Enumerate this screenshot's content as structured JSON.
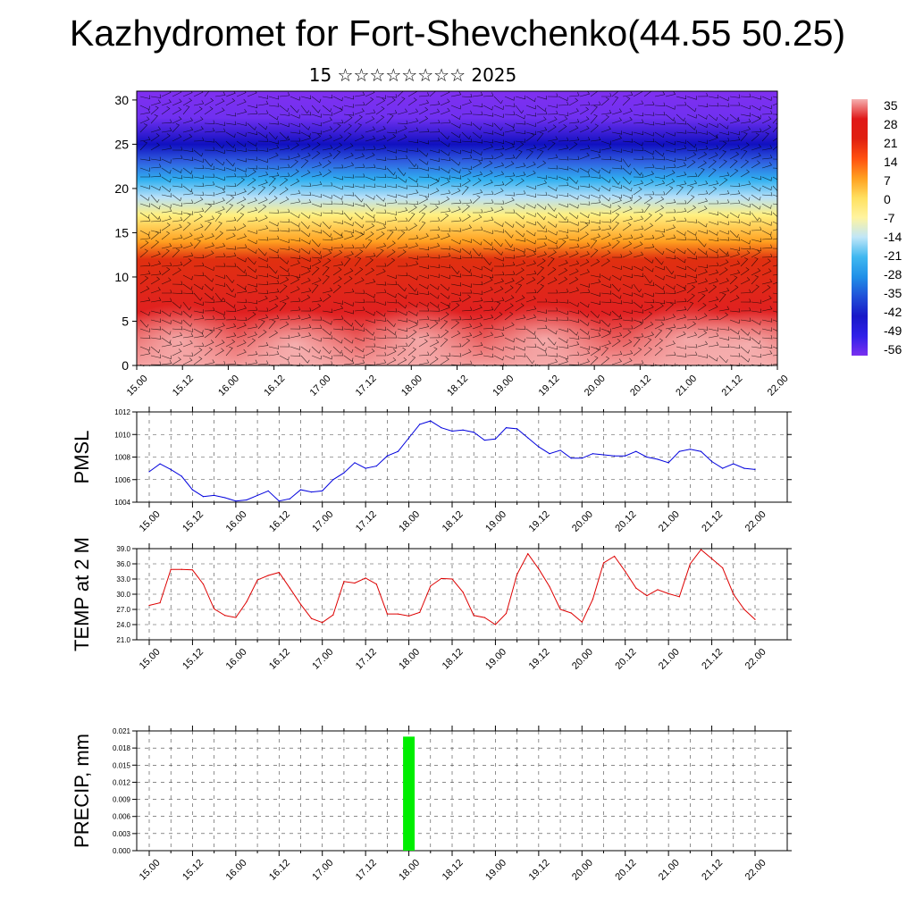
{
  "header": {
    "title": "Kazhydromet for Fort-Shevchenko(44.55 50.25)",
    "subtitle": "15 ☆☆☆☆☆☆☆☆ 2025"
  },
  "chart_data": [
    {
      "type": "heatmap",
      "name_ref": "upper-air temperature cross-section with wind barbs",
      "y_ticks": [
        "0",
        "5",
        "10",
        "15",
        "20",
        "25",
        "30"
      ],
      "ylim": [
        0,
        31
      ],
      "x_ticks": [
        "15.00",
        "15.12",
        "16.00",
        "16.12",
        "17.00",
        "17.12",
        "18.00",
        "18.12",
        "19.00",
        "19.12",
        "20.00",
        "20.12",
        "21.00",
        "21.12",
        "22.00"
      ],
      "colorbar_labels": [
        "35",
        "28",
        "21",
        "14",
        "7",
        "0",
        "-7",
        "-14",
        "-21",
        "-28",
        "-35",
        "-42",
        "-49",
        "-56"
      ],
      "color_stops": [
        {
          "level": 0,
          "color": "#f5a0a0"
        },
        {
          "level": 6,
          "color": "#e02020"
        },
        {
          "level": 12,
          "color": "#e03010"
        },
        {
          "level": 14,
          "color": "#ffa020"
        },
        {
          "level": 17,
          "color": "#fff080"
        },
        {
          "level": 19,
          "color": "#b8e0f8"
        },
        {
          "level": 21,
          "color": "#30b0f0"
        },
        {
          "level": 23,
          "color": "#3060e0"
        },
        {
          "level": 25,
          "color": "#1010c0"
        },
        {
          "level": 28,
          "color": "#7030f0"
        },
        {
          "level": 31,
          "color": "#8030f0"
        }
      ]
    },
    {
      "type": "line",
      "ylabel": "PMSL",
      "ylim": [
        1004,
        1012
      ],
      "y_ticks": [
        "1004",
        "1006",
        "1008",
        "1010",
        "1012"
      ],
      "x_ticks": [
        "15.00",
        "15.12",
        "16.00",
        "16.12",
        "17.00",
        "17.12",
        "18.00",
        "18.12",
        "19.00",
        "19.12",
        "20.00",
        "20.12",
        "21.00",
        "21.12",
        "22.00"
      ],
      "color": "#0000dd",
      "series": [
        {
          "values": [
            1006.7,
            1007.4,
            1006.9,
            1006.3,
            1005.1,
            1004.5,
            1004.6,
            1004.4,
            1004.1,
            1004.2,
            1004.6,
            1005.0,
            1004.1,
            1004.3,
            1005.1,
            1004.9,
            1005.0,
            1006.0,
            1006.6,
            1007.5,
            1007.0,
            1007.2,
            1008.1,
            1008.5,
            1009.7,
            1010.9,
            1011.2,
            1010.6,
            1010.3,
            1010.4,
            1010.2,
            1009.5,
            1009.6,
            1010.6,
            1010.5,
            1009.7,
            1008.9,
            1008.3,
            1008.6,
            1007.9,
            1007.9,
            1008.3,
            1008.2,
            1008.1,
            1008.1,
            1008.5,
            1008.0,
            1007.8,
            1007.5,
            1008.5,
            1008.7,
            1008.5,
            1007.6,
            1007.0,
            1007.4,
            1007.0,
            1006.9
          ]
        }
      ]
    },
    {
      "type": "line",
      "ylabel": "TEMP at 2 M",
      "ylim": [
        21,
        39
      ],
      "y_ticks": [
        "21.0",
        "24.0",
        "27.0",
        "30.0",
        "33.0",
        "36.0",
        "39.0"
      ],
      "x_ticks": [
        "15.00",
        "15.12",
        "16.00",
        "16.12",
        "17.00",
        "17.12",
        "18.00",
        "18.12",
        "19.00",
        "19.12",
        "20.00",
        "20.12",
        "21.00",
        "21.12",
        "22.00"
      ],
      "color": "#dd0000",
      "series": [
        {
          "values": [
            27.8,
            28.3,
            34.9,
            34.9,
            34.8,
            32.0,
            27.1,
            25.8,
            25.4,
            28.5,
            32.8,
            33.7,
            34.3,
            31.2,
            28.0,
            25.2,
            24.4,
            25.9,
            32.5,
            32.2,
            33.2,
            32.0,
            26.1,
            26.1,
            25.7,
            26.4,
            31.6,
            33.1,
            33.0,
            30.4,
            25.8,
            25.4,
            24.0,
            26.2,
            33.9,
            38.0,
            35.0,
            31.5,
            27.0,
            26.3,
            24.5,
            29.0,
            36.2,
            37.5,
            34.5,
            31.2,
            29.7,
            30.9,
            30.1,
            29.5,
            36.0,
            38.8,
            37.0,
            35.2,
            30.0,
            27.0,
            25.0
          ]
        }
      ]
    },
    {
      "type": "bar",
      "ylabel": "PRECIP, mm",
      "ylim": [
        0,
        0.021
      ],
      "y_ticks": [
        "0.000",
        "0.003",
        "0.006",
        "0.009",
        "0.012",
        "0.015",
        "0.018",
        "0.021"
      ],
      "x_ticks": [
        "15.00",
        "15.12",
        "16.00",
        "16.12",
        "17.00",
        "17.12",
        "18.00",
        "18.12",
        "19.00",
        "19.12",
        "20.00",
        "20.12",
        "21.00",
        "21.12",
        "22.00"
      ],
      "color": "#00ee00",
      "bars": [
        {
          "x_hour": 72,
          "value": 0.02
        }
      ]
    }
  ]
}
